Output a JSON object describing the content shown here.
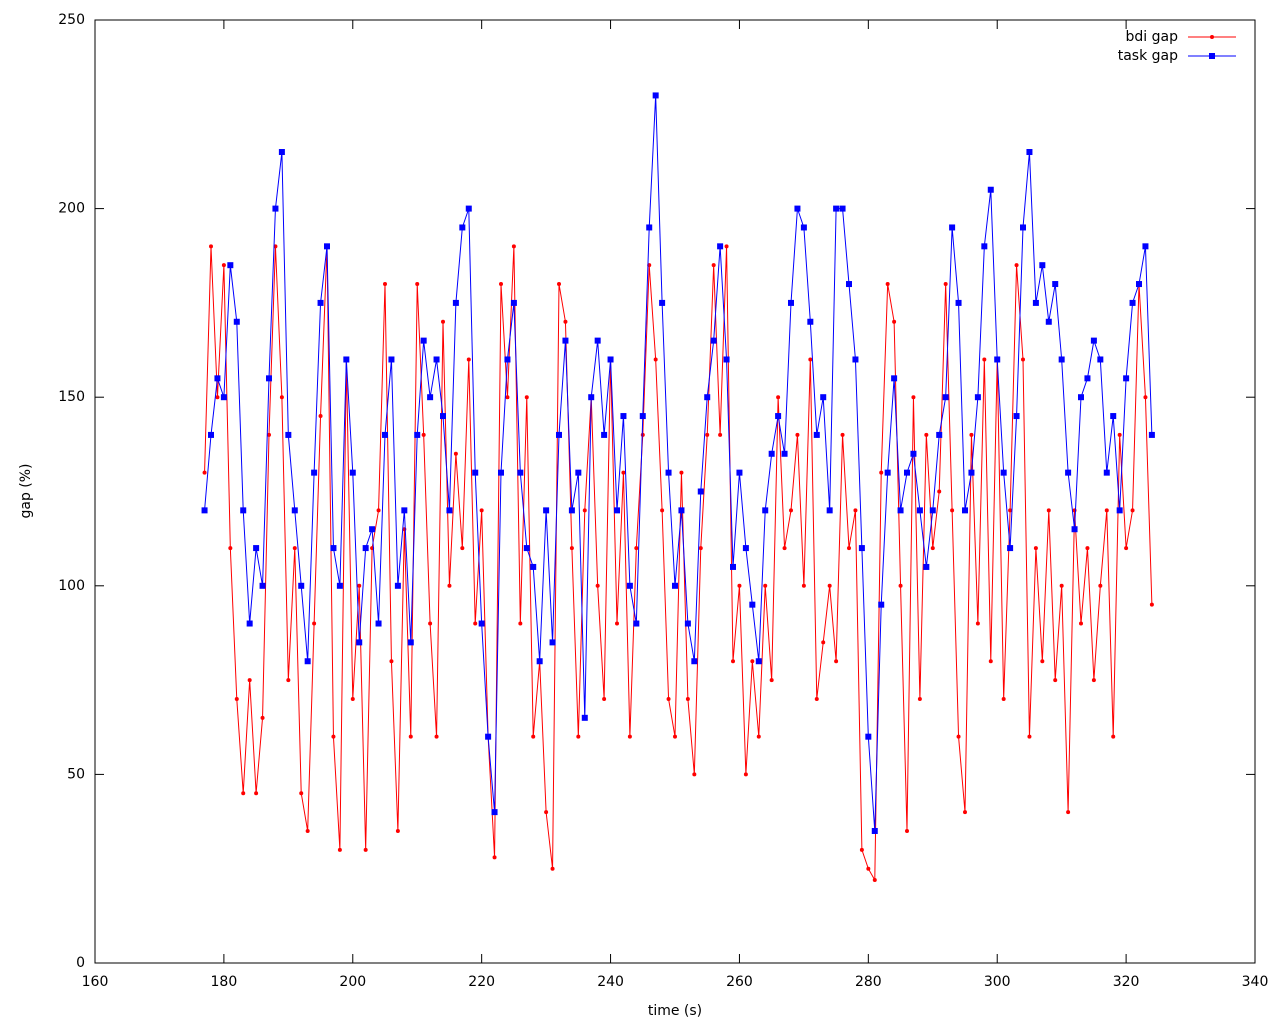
{
  "chart_data": {
    "type": "line",
    "x_label": "time (s)",
    "y_label": "gap (%)",
    "xlim": [
      160,
      340
    ],
    "xticks": [
      160,
      180,
      200,
      220,
      240,
      260,
      280,
      300,
      320,
      340
    ],
    "ylim": [
      0,
      250
    ],
    "yticks": [
      0,
      50,
      100,
      150,
      200,
      250
    ],
    "legend": "top-right",
    "grid": false,
    "x": [
      177,
      178,
      179,
      180,
      181,
      182,
      183,
      184,
      185,
      186,
      187,
      188,
      189,
      190,
      191,
      192,
      193,
      194,
      195,
      196,
      197,
      198,
      199,
      200,
      201,
      202,
      203,
      204,
      205,
      206,
      207,
      208,
      209,
      210,
      211,
      212,
      213,
      214,
      215,
      216,
      217,
      218,
      219,
      220,
      221,
      222,
      223,
      224,
      225,
      226,
      227,
      228,
      229,
      230,
      231,
      232,
      233,
      234,
      235,
      236,
      237,
      238,
      239,
      240,
      241,
      242,
      243,
      244,
      245,
      246,
      247,
      248,
      249,
      250,
      251,
      252,
      253,
      254,
      255,
      256,
      257,
      258,
      259,
      260,
      261,
      262,
      263,
      264,
      265,
      266,
      267,
      268,
      269,
      270,
      271,
      272,
      273,
      274,
      275,
      276,
      277,
      278,
      279,
      280,
      281,
      282,
      283,
      284,
      285,
      286,
      287,
      288,
      289,
      290,
      291,
      292,
      293,
      294,
      295,
      296,
      297,
      298,
      299,
      300,
      301,
      302,
      303,
      304,
      305,
      306,
      307,
      308,
      309,
      310,
      311,
      312,
      313,
      314,
      315,
      316,
      317,
      318,
      319,
      320,
      321,
      322,
      323,
      324
    ],
    "series": [
      {
        "name": "bdi gap",
        "color": "#ff0000",
        "marker": "dot",
        "values": [
          130,
          190,
          150,
          185,
          110,
          70,
          45,
          75,
          45,
          65,
          140,
          190,
          150,
          75,
          110,
          45,
          35,
          90,
          145,
          190,
          60,
          30,
          160,
          70,
          100,
          30,
          110,
          120,
          180,
          80,
          35,
          115,
          60,
          180,
          140,
          90,
          60,
          170,
          100,
          135,
          110,
          160,
          90,
          120,
          60,
          28,
          180,
          150,
          190,
          90,
          150,
          60,
          80,
          40,
          25,
          180,
          170,
          110,
          60,
          120,
          150,
          100,
          70,
          160,
          90,
          130,
          60,
          110,
          140,
          185,
          160,
          120,
          70,
          60,
          130,
          70,
          50,
          110,
          140,
          185,
          140,
          190,
          80,
          100,
          50,
          80,
          60,
          100,
          75,
          150,
          110,
          120,
          140,
          100,
          160,
          70,
          85,
          100,
          80,
          140,
          110,
          120,
          30,
          25,
          22,
          130,
          180,
          170,
          100,
          35,
          150,
          70,
          140,
          110,
          125,
          180,
          120,
          60,
          40,
          140,
          90,
          160,
          80,
          160,
          70,
          120,
          185,
          160,
          60,
          110,
          80,
          120,
          75,
          100,
          40,
          120,
          90,
          110,
          75,
          100,
          120,
          60,
          140,
          110,
          120,
          180,
          150,
          95
        ]
      },
      {
        "name": "task gap",
        "color": "#0000ff",
        "marker": "square",
        "values": [
          120,
          140,
          155,
          150,
          185,
          170,
          120,
          90,
          110,
          100,
          155,
          200,
          215,
          140,
          120,
          100,
          80,
          130,
          175,
          190,
          110,
          100,
          160,
          130,
          85,
          110,
          115,
          90,
          140,
          160,
          100,
          120,
          85,
          140,
          165,
          150,
          160,
          145,
          120,
          175,
          195,
          200,
          130,
          90,
          60,
          40,
          130,
          160,
          175,
          130,
          110,
          105,
          80,
          120,
          85,
          140,
          165,
          120,
          130,
          65,
          150,
          165,
          140,
          160,
          120,
          145,
          100,
          90,
          145,
          195,
          230,
          175,
          130,
          100,
          120,
          90,
          80,
          125,
          150,
          165,
          190,
          160,
          105,
          130,
          110,
          95,
          80,
          120,
          135,
          145,
          135,
          175,
          200,
          195,
          170,
          140,
          150,
          120,
          200,
          200,
          180,
          160,
          110,
          60,
          35,
          95,
          130,
          155,
          120,
          130,
          135,
          120,
          105,
          120,
          140,
          150,
          195,
          175,
          120,
          130,
          150,
          190,
          205,
          160,
          130,
          110,
          145,
          195,
          215,
          175,
          185,
          170,
          180,
          160,
          130,
          115,
          150,
          155,
          165,
          160,
          130,
          145,
          120,
          155,
          175,
          180,
          190,
          140
        ]
      }
    ]
  }
}
